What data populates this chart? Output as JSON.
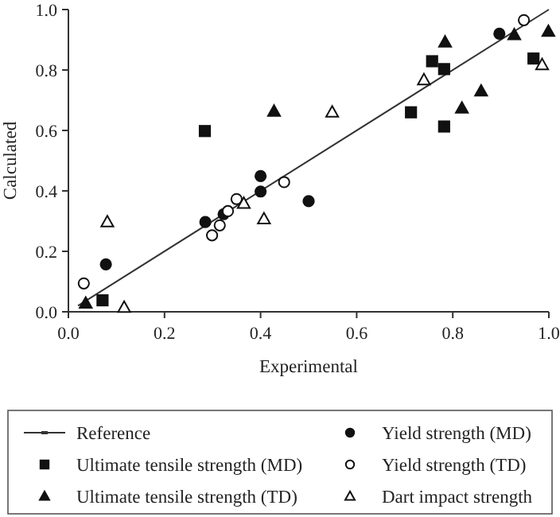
{
  "chart_data": {
    "type": "scatter",
    "xlabel": "Experimental",
    "ylabel": "Calculated",
    "xlim": [
      0,
      1
    ],
    "ylim": [
      0,
      1
    ],
    "xticks": [
      {
        "value": 0,
        "label": "0.0"
      },
      {
        "value": 0.2,
        "label": "0.2"
      },
      {
        "value": 0.4,
        "label": "0.4"
      },
      {
        "value": 0.6,
        "label": "0.6"
      },
      {
        "value": 0.8,
        "label": "0.8"
      },
      {
        "value": 1,
        "label": "1.0"
      }
    ],
    "yticks": [
      {
        "value": 0,
        "label": "0.0"
      },
      {
        "value": 0.2,
        "label": "0.2"
      },
      {
        "value": 0.4,
        "label": "0.4"
      },
      {
        "value": 0.6,
        "label": "0.6"
      },
      {
        "value": 0.8,
        "label": "0.8"
      },
      {
        "value": 1,
        "label": "1.0"
      }
    ],
    "grid": false,
    "legend": "bottom",
    "series": [
      {
        "name": "Reference",
        "type": "line",
        "marker": "none",
        "color": "#333333",
        "x": [
          0.02,
          1
        ],
        "values": [
          0.02,
          1
        ]
      },
      {
        "name": "Yield strength (MD)",
        "marker": "circle",
        "color": "#111111",
        "x": [
          0.078,
          0.285,
          0.323,
          0.4,
          0.4,
          0.5,
          0.897
        ],
        "values": [
          0.157,
          0.297,
          0.323,
          0.449,
          0.398,
          0.366,
          0.92
        ]
      },
      {
        "name": "Ultimate tensile strength (MD)",
        "marker": "square",
        "color": "#111111",
        "x": [
          0.071,
          0.284,
          0.713,
          0.757,
          0.782,
          0.782,
          0.968
        ],
        "values": [
          0.038,
          0.598,
          0.66,
          0.829,
          0.803,
          0.613,
          0.838
        ]
      },
      {
        "name": "Yield strength (TD)",
        "marker": "circle",
        "color": "#ffffff",
        "x": [
          0.032,
          0.299,
          0.315,
          0.332,
          0.35,
          0.449,
          0.948
        ],
        "values": [
          0.094,
          0.253,
          0.286,
          0.333,
          0.373,
          0.429,
          0.965
        ]
      },
      {
        "name": "Ultimate tensile strength (TD)",
        "marker": "triangle",
        "color": "#111111",
        "x": [
          0.036,
          0.428,
          0.784,
          0.819,
          0.859,
          0.928,
          0.999
        ],
        "values": [
          0.028,
          0.663,
          0.892,
          0.673,
          0.73,
          0.916,
          0.927
        ]
      },
      {
        "name": "Dart impact strength",
        "marker": "triangle",
        "color": "#ffffff",
        "x": [
          0.081,
          0.116,
          0.365,
          0.407,
          0.549,
          0.74,
          0.986
        ],
        "values": [
          0.297,
          0.014,
          0.358,
          0.307,
          0.66,
          0.767,
          0.817
        ]
      }
    ]
  }
}
